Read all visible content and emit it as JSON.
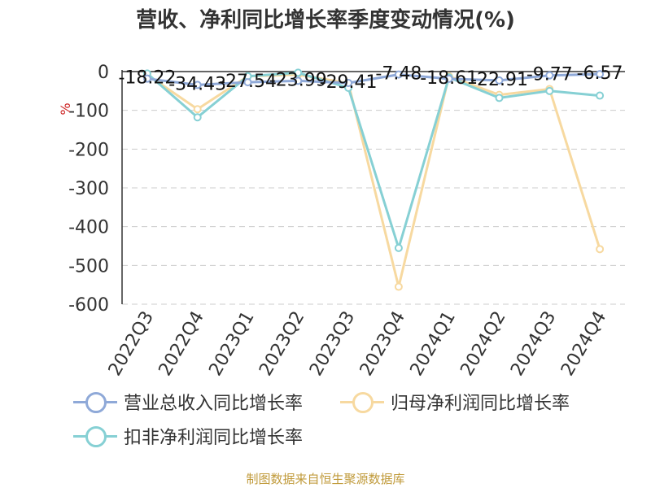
{
  "chart_data": {
    "type": "line",
    "title": "营收、净利同比增长率季度变动情况(%)",
    "ylabel": "%",
    "ylim": [
      -600,
      0
    ],
    "yticks": [
      0,
      -100,
      -200,
      -300,
      -400,
      -500,
      -600
    ],
    "grid": true,
    "legend_position": "bottom",
    "categories": [
      "2022Q3",
      "2022Q4",
      "2023Q1",
      "2023Q2",
      "2023Q3",
      "2023Q4",
      "2024Q1",
      "2024Q2",
      "2024Q3",
      "2024Q4"
    ],
    "series": [
      {
        "name": "营业总收入同比增长率",
        "color": "#8fa9d8",
        "values": [
          -18.22,
          -34.43,
          -27.54,
          -23.99,
          -29.41,
          -7.48,
          -18.61,
          -22.91,
          -9.77,
          -6.57
        ],
        "labels": [
          "-18.22",
          "-34.43",
          "-27.54",
          "-23.99",
          "-29.41",
          "-7.48",
          "-18.61",
          "-22.91",
          "-9.77",
          "-6.57"
        ]
      },
      {
        "name": "归母净利润同比增长率",
        "color": "#f7d9a0",
        "values": [
          -8,
          -97,
          -12,
          -8,
          -30,
          -555,
          -12,
          -60,
          -45,
          -458
        ]
      },
      {
        "name": "扣非净利润同比增长率",
        "color": "#86d0d4",
        "values": [
          -5,
          -118,
          -12,
          -3,
          -42,
          -455,
          -15,
          -68,
          -50,
          -62
        ]
      }
    ]
  },
  "source": "制图数据来自恒生聚源数据库"
}
